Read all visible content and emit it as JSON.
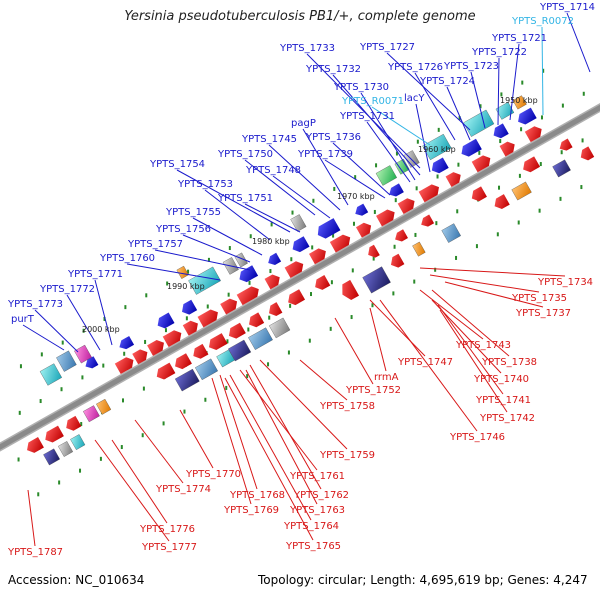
{
  "title": "Yersinia pseudotuberculosis PB1/+, complete genome",
  "footer": {
    "accession": "Accession: NC_010634",
    "summary": "Topology: circular; Length: 4,695,619 bp; Genes: 4,247"
  },
  "colors": {
    "forward_label": "#1a1acc",
    "reverse_label": "#d81818",
    "rna_label": "#33b5e5",
    "backbone": "#8a8a8a"
  },
  "ticks": [
    {
      "label": "1950 kbp"
    },
    {
      "label": "1960 kbp"
    },
    {
      "label": "1970 kbp"
    },
    {
      "label": "1980 kbp"
    },
    {
      "label": "1990 kbp"
    },
    {
      "label": "2000 kbp"
    }
  ],
  "top_labels": [
    {
      "text": "YPTS_1714",
      "kind": "forward"
    },
    {
      "text": "YPTS_R0072",
      "kind": "rna"
    },
    {
      "text": "YPTS_1721",
      "kind": "forward"
    },
    {
      "text": "YPTS_1722",
      "kind": "forward"
    },
    {
      "text": "YPTS_1727",
      "kind": "forward"
    },
    {
      "text": "YPTS_1723",
      "kind": "forward"
    },
    {
      "text": "YPTS_1726",
      "kind": "forward"
    },
    {
      "text": "YPTS_1733",
      "kind": "forward"
    },
    {
      "text": "YPTS_1724",
      "kind": "forward"
    },
    {
      "text": "YPTS_1732",
      "kind": "forward"
    },
    {
      "text": "YPTS_1730",
      "kind": "forward"
    },
    {
      "text": "lacY",
      "kind": "forward"
    },
    {
      "text": "YPTS_R0071",
      "kind": "rna"
    },
    {
      "text": "YPTS_1731",
      "kind": "forward"
    },
    {
      "text": "pagP",
      "kind": "forward"
    },
    {
      "text": "YPTS_1745",
      "kind": "forward"
    },
    {
      "text": "YPTS_1736",
      "kind": "forward"
    },
    {
      "text": "YPTS_1750",
      "kind": "forward"
    },
    {
      "text": "YPTS_1739",
      "kind": "forward"
    },
    {
      "text": "YPTS_1754",
      "kind": "forward"
    },
    {
      "text": "YPTS_1748",
      "kind": "forward"
    },
    {
      "text": "YPTS_1753",
      "kind": "forward"
    },
    {
      "text": "YPTS_1751",
      "kind": "forward"
    },
    {
      "text": "YPTS_1755",
      "kind": "forward"
    },
    {
      "text": "YPTS_1756",
      "kind": "forward"
    },
    {
      "text": "YPTS_1757",
      "kind": "forward"
    },
    {
      "text": "YPTS_1760",
      "kind": "forward"
    },
    {
      "text": "YPTS_1771",
      "kind": "forward"
    },
    {
      "text": "YPTS_1772",
      "kind": "forward"
    },
    {
      "text": "YPTS_1773",
      "kind": "forward"
    },
    {
      "text": "purT",
      "kind": "forward"
    }
  ],
  "bottom_labels": [
    {
      "text": "YPTS_1734",
      "kind": "reverse"
    },
    {
      "text": "YPTS_1735",
      "kind": "reverse"
    },
    {
      "text": "YPTS_1737",
      "kind": "reverse"
    },
    {
      "text": "YPTS_1743",
      "kind": "reverse"
    },
    {
      "text": "YPTS_1738",
      "kind": "reverse"
    },
    {
      "text": "YPTS_1747",
      "kind": "reverse"
    },
    {
      "text": "rrmA",
      "kind": "reverse"
    },
    {
      "text": "YPTS_1740",
      "kind": "reverse"
    },
    {
      "text": "YPTS_1752",
      "kind": "reverse"
    },
    {
      "text": "YPTS_1741",
      "kind": "reverse"
    },
    {
      "text": "YPTS_1758",
      "kind": "reverse"
    },
    {
      "text": "YPTS_1742",
      "kind": "reverse"
    },
    {
      "text": "YPTS_1746",
      "kind": "reverse"
    },
    {
      "text": "YPTS_1759",
      "kind": "reverse"
    },
    {
      "text": "YPTS_1770",
      "kind": "reverse"
    },
    {
      "text": "YPTS_1761",
      "kind": "reverse"
    },
    {
      "text": "YPTS_1774",
      "kind": "reverse"
    },
    {
      "text": "YPTS_1768",
      "kind": "reverse"
    },
    {
      "text": "YPTS_1762",
      "kind": "reverse"
    },
    {
      "text": "YPTS_1769",
      "kind": "reverse"
    },
    {
      "text": "YPTS_1763",
      "kind": "reverse"
    },
    {
      "text": "YPTS_1776",
      "kind": "reverse"
    },
    {
      "text": "YPTS_1764",
      "kind": "reverse"
    },
    {
      "text": "YPTS_1777",
      "kind": "reverse"
    },
    {
      "text": "YPTS_1765",
      "kind": "reverse"
    },
    {
      "text": "YPTS_1787",
      "kind": "reverse"
    }
  ]
}
